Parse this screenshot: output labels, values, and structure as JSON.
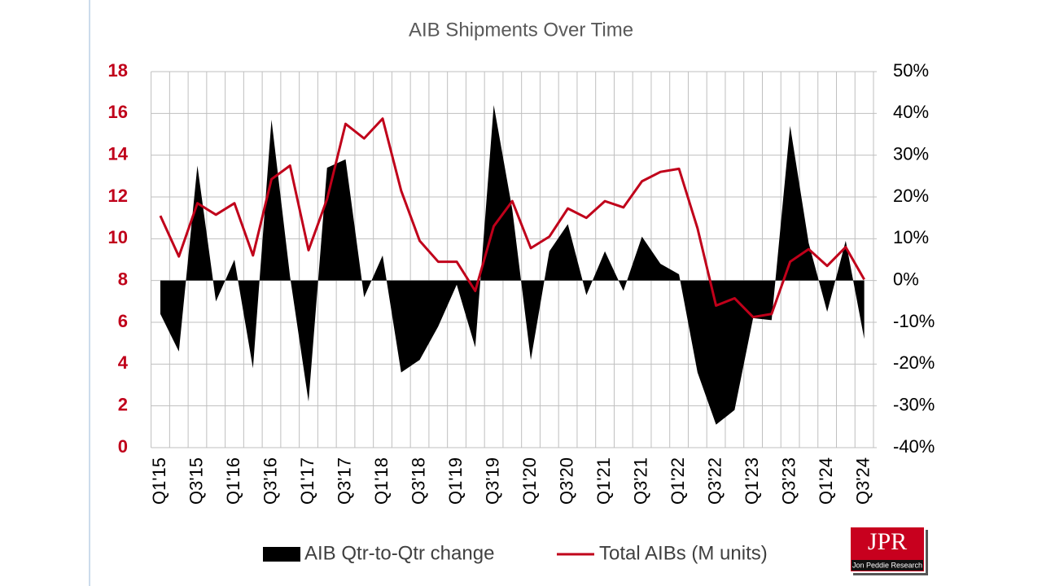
{
  "chart_data": {
    "type": "area-line",
    "title": "AIB Shipments Over Time",
    "categories": [
      "Q1'15",
      null,
      "Q3'15",
      null,
      "Q1'16",
      null,
      "Q3'16",
      null,
      "Q1'17",
      null,
      "Q3'17",
      null,
      "Q1'18",
      null,
      "Q3'18",
      null,
      "Q1'19",
      null,
      "Q3'19",
      null,
      "Q1'20",
      null,
      "Q3'20",
      null,
      "Q1'21",
      null,
      "Q3'21",
      null,
      "Q1'22",
      null,
      "Q3'22",
      null,
      "Q1'23",
      null,
      "Q3'23",
      null,
      "Q1'24",
      null,
      "Q3'24"
    ],
    "series": [
      {
        "name": "AIB Qtr-to-Qtr change",
        "type": "area",
        "axis": "y2",
        "color": "#000000",
        "values": [
          -8,
          -17,
          27.5,
          -5,
          5,
          -21,
          38.5,
          1,
          -29,
          27,
          29,
          -4,
          6,
          -22,
          -19,
          -11,
          -1,
          -16,
          42,
          17,
          -19,
          7,
          13.5,
          -3.5,
          7,
          -2.5,
          10.5,
          4,
          1.5,
          -22,
          -34.5,
          -31,
          -9,
          -9.5,
          37,
          9,
          -7.5,
          9.5,
          -14
        ]
      },
      {
        "name": "Total AIBs (M units)",
        "type": "line",
        "axis": "y",
        "color": "#c0001a",
        "values": [
          11.1,
          9.15,
          11.7,
          11.15,
          11.7,
          9.2,
          12.85,
          13.5,
          9.45,
          11.9,
          15.5,
          14.8,
          15.75,
          12.3,
          9.9,
          8.9,
          8.9,
          7.5,
          10.6,
          11.8,
          9.55,
          10.1,
          11.45,
          11.0,
          11.8,
          11.5,
          12.75,
          13.2,
          13.35,
          10.5,
          6.8,
          7.15,
          6.25,
          6.4,
          8.9,
          9.5,
          8.7,
          9.6,
          8.05
        ]
      }
    ],
    "ylim": [
      0,
      18
    ],
    "yticks": [
      0,
      2,
      4,
      6,
      8,
      10,
      12,
      14,
      16,
      18
    ],
    "ytick_color": "#c0001a",
    "y2lim": [
      -40,
      50
    ],
    "y2ticks": [
      {
        "value": -40,
        "label": "-40%"
      },
      {
        "value": -30,
        "label": "-30%"
      },
      {
        "value": -20,
        "label": "-20%"
      },
      {
        "value": -10,
        "label": "-10%"
      },
      {
        "value": 0,
        "label": "0%"
      },
      {
        "value": 10,
        "label": "10%"
      },
      {
        "value": 20,
        "label": "20%"
      },
      {
        "value": 30,
        "label": "30%"
      },
      {
        "value": 40,
        "label": "40%"
      },
      {
        "value": 50,
        "label": "50%"
      }
    ],
    "grid": true,
    "legend": "bottom"
  },
  "logo": {
    "text": "JPR",
    "subtitle": "Jon Peddie Research"
  }
}
